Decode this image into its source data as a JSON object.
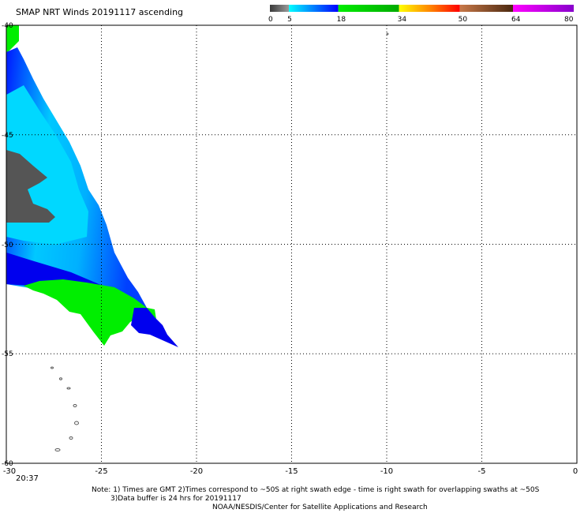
{
  "title": "SMAP NRT Winds 20191117 ascending",
  "colorbar": {
    "labels": [
      "0",
      "5",
      "18",
      "34",
      "50",
      "64",
      "80"
    ],
    "segments": [
      {
        "from": 0,
        "to": 5,
        "colors": [
          "#3a3a3a",
          "#9a9a9a"
        ]
      },
      {
        "from": 5,
        "to": 18,
        "colors": [
          "#00ffff",
          "#0000ff"
        ]
      },
      {
        "from": 18,
        "to": 34,
        "colors": [
          "#00ee00",
          "#00aa00"
        ]
      },
      {
        "from": 34,
        "to": 50,
        "colors": [
          "#ffff00",
          "#ff8800",
          "#ff0000"
        ]
      },
      {
        "from": 50,
        "to": 64,
        "colors": [
          "#c87848",
          "#4a2810"
        ]
      },
      {
        "from": 64,
        "to": 80,
        "colors": [
          "#ff00ff",
          "#8800cc"
        ]
      }
    ]
  },
  "map": {
    "lon_ticks": [
      "-30",
      "-25",
      "-20",
      "-15",
      "-10",
      "-5",
      "0"
    ],
    "lat_ticks": [
      "-40",
      "-45",
      "-50",
      "-55",
      "-60"
    ],
    "colors": {
      "gray": "#555555",
      "cyan": "#00d8ff",
      "lightblue": "#0090ff",
      "blue": "#0000ee",
      "green": "#00ee00",
      "grid": "#000000"
    }
  },
  "time_label": "20:37",
  "notes": {
    "line1": "Note: 1) Times are GMT 2)Times correspond to ~50S at right swath edge - time is right swath for overlapping swaths at ~50S",
    "line2": "3)Data buffer is 24 hrs for 20191117",
    "line3": "NOAA/NESDIS/Center for Satellite Applications and Research"
  }
}
